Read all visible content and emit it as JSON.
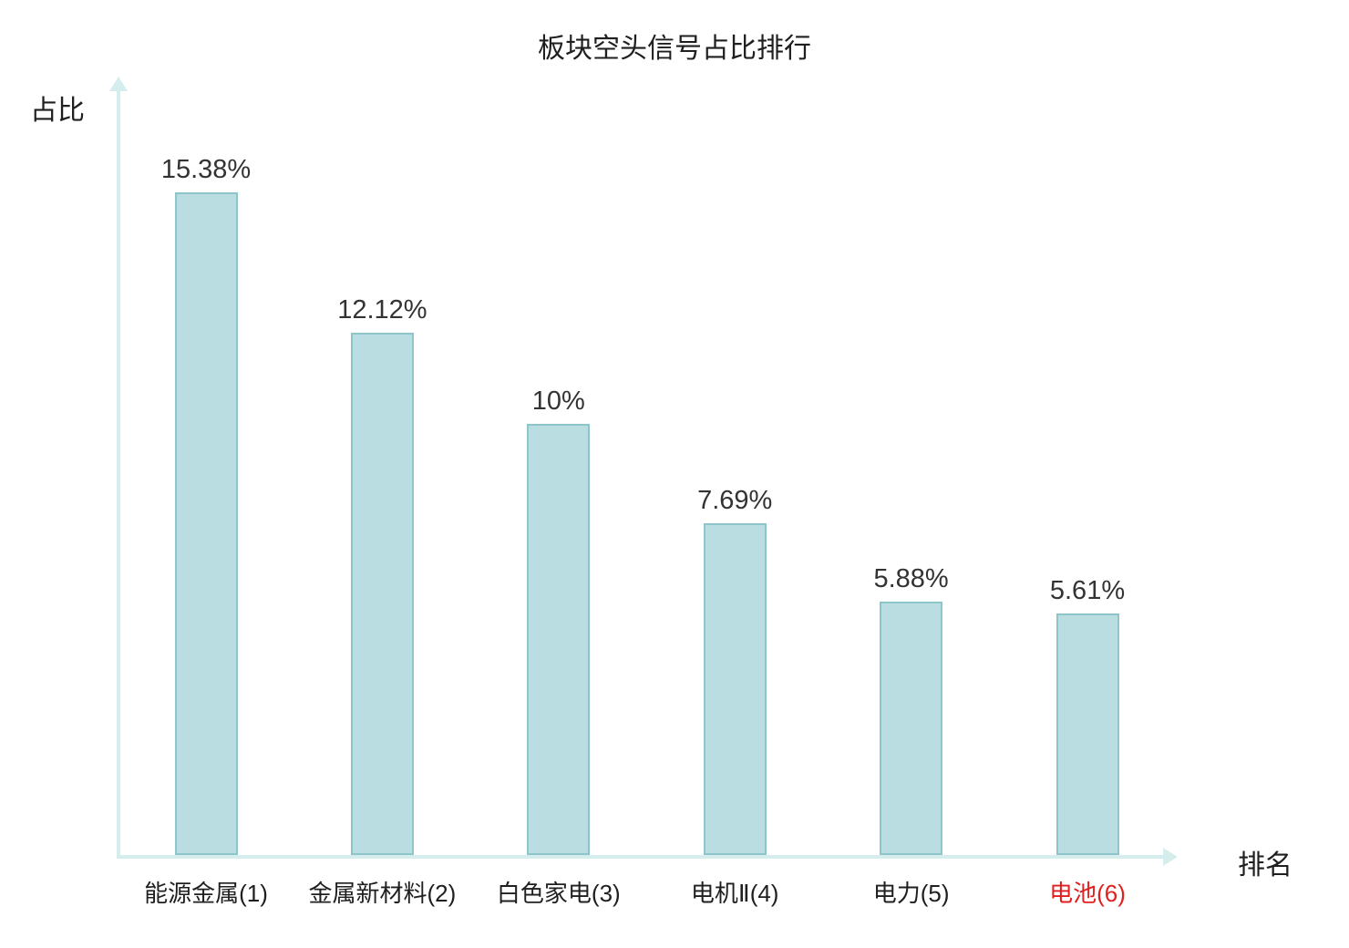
{
  "chart_data": {
    "type": "bar",
    "title": "板块空头信号占比排行",
    "xlabel": "排名",
    "ylabel": "占比",
    "categories": [
      "能源金属(1)",
      "金属新材料(2)",
      "白色家电(3)",
      "电机Ⅱ(4)",
      "电力(5)",
      "电池(6)"
    ],
    "values": [
      15.38,
      12.12,
      10,
      7.69,
      5.88,
      5.61
    ],
    "value_labels": [
      "15.38%",
      "12.12%",
      "10%",
      "7.69%",
      "5.88%",
      "5.61%"
    ],
    "ylim": [
      0,
      16
    ],
    "grid": false,
    "legend": "none",
    "highlight_index": 5,
    "colors": {
      "bar_fill": "#b9dde1",
      "bar_border": "#8ec5cb",
      "axis": "#d6eded",
      "text": "#1f1f1f",
      "value_text": "#333333",
      "highlight_text": "#e01f1f"
    }
  }
}
